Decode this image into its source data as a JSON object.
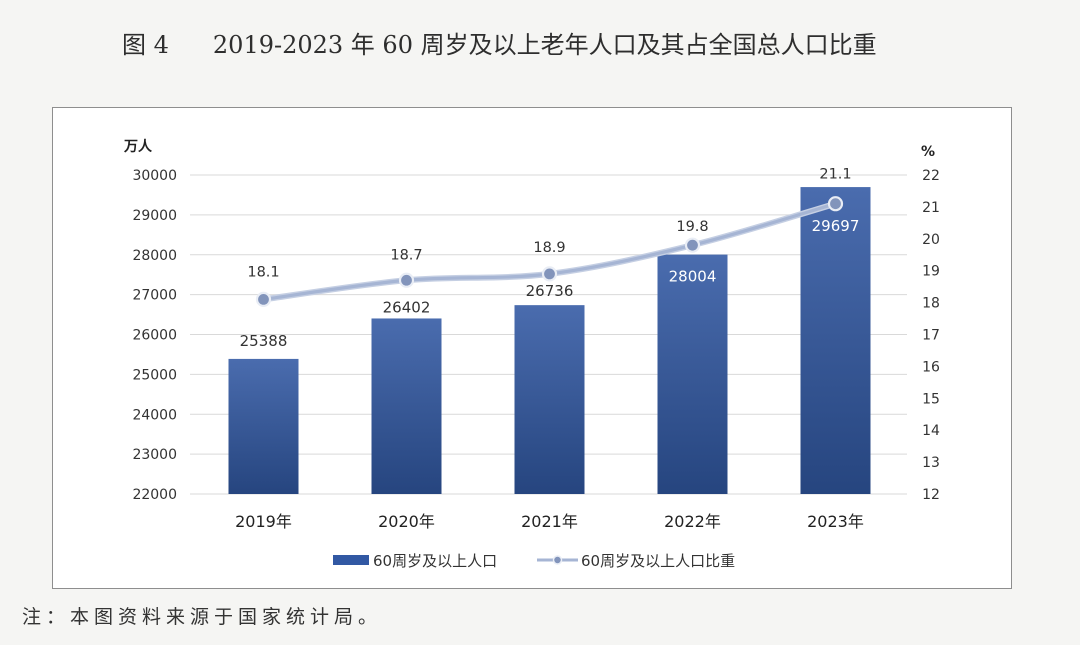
{
  "figure_number": "图 4",
  "footnote": "注：本图资料来源于国家统计局。",
  "chart_data": {
    "type": "bar",
    "title": "2019-2023 年 60 周岁及以上老年人口及其占全国总人口比重",
    "categories": [
      "2019年",
      "2020年",
      "2021年",
      "2022年",
      "2023年"
    ],
    "series": [
      {
        "name": "60周岁及以上人口",
        "type": "bar",
        "axis": "left",
        "values": [
          25388,
          26402,
          26736,
          28004,
          29697
        ],
        "color": "#3158a3"
      },
      {
        "name": "60周岁及以上人口比重",
        "type": "line",
        "axis": "right",
        "smooth": true,
        "values": [
          18.1,
          18.7,
          18.9,
          19.8,
          21.1
        ],
        "color": "#a6b5d4",
        "marker_color": "#8294bb"
      }
    ],
    "y_left": {
      "label": "万人",
      "ylim": [
        22000,
        30000
      ],
      "ticks": [
        22000,
        23000,
        24000,
        25000,
        26000,
        27000,
        28000,
        29000,
        30000
      ]
    },
    "y_right": {
      "label": "%",
      "ylim": [
        12,
        22
      ],
      "ticks": [
        12,
        13,
        14,
        15,
        16,
        17,
        18,
        19,
        20,
        21,
        22
      ]
    },
    "data_labels": true,
    "grid": true,
    "grid_color": "#d9d9d9",
    "legend_position": "bottom"
  }
}
